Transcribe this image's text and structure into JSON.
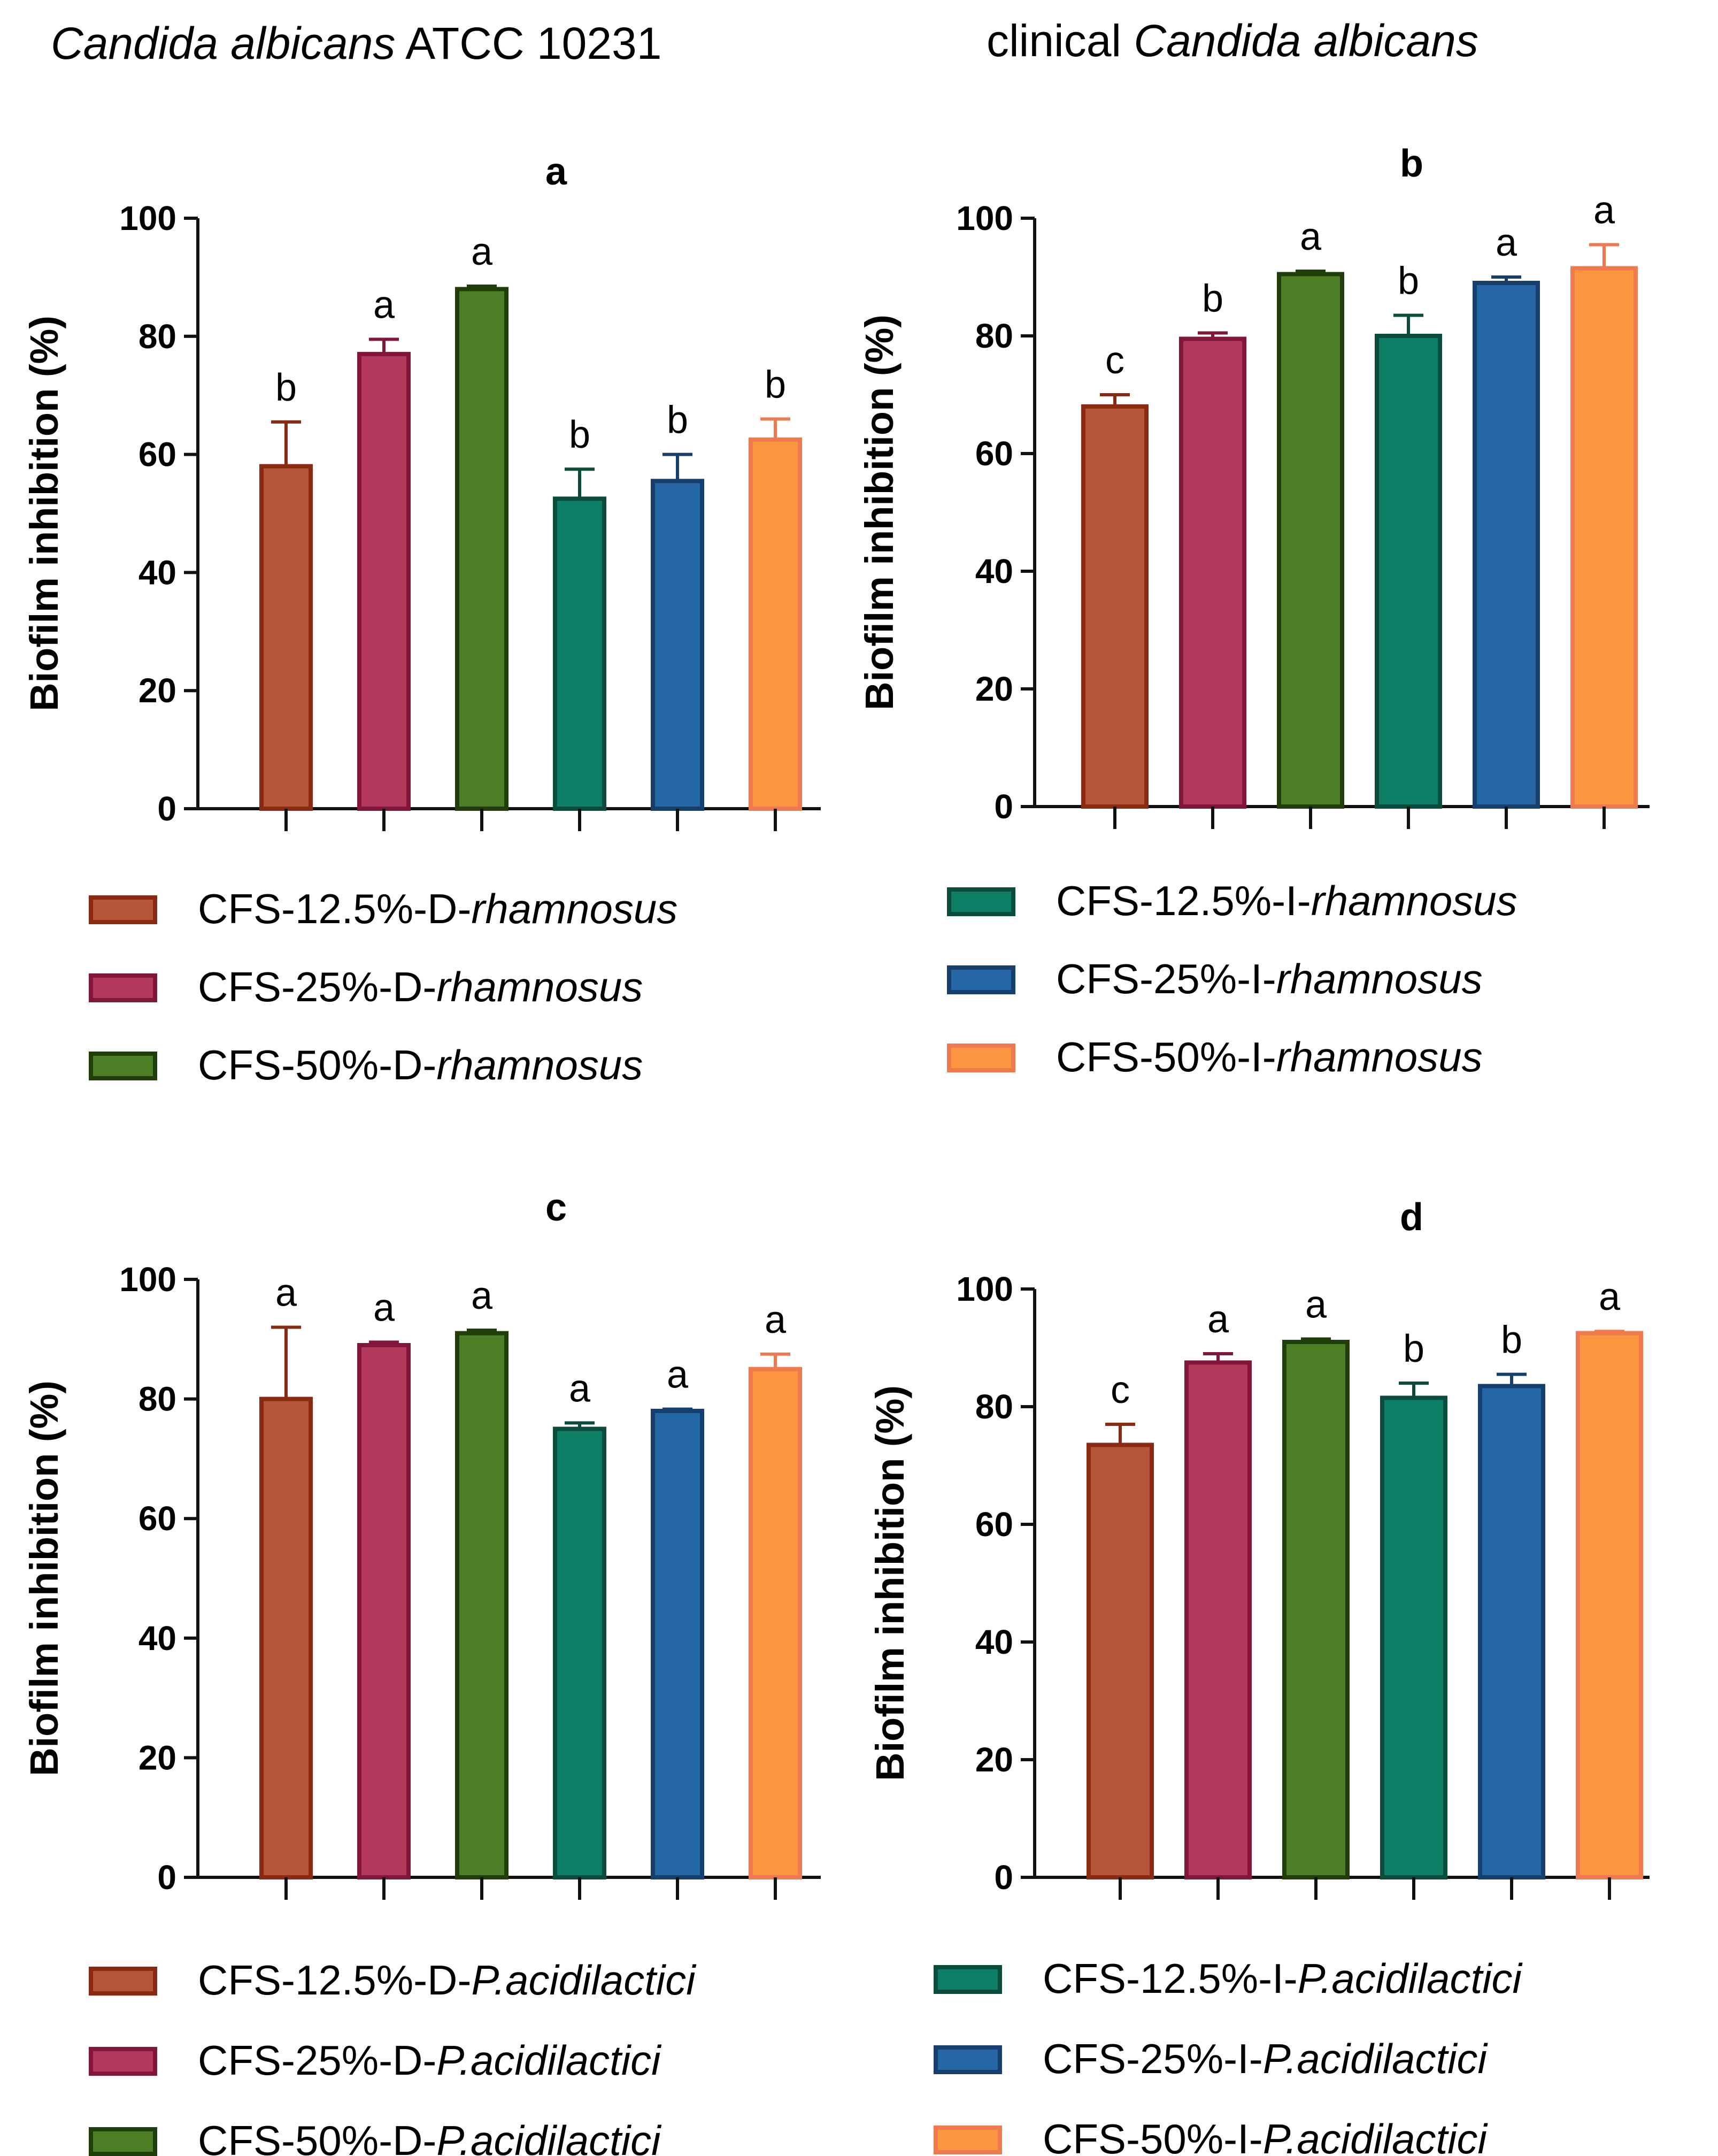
{
  "headings": {
    "left": {
      "italic": "Candida albicans",
      "plain": " ATCC 10231"
    },
    "right": {
      "plain": "clinical ",
      "italic": "Candida albicans"
    }
  },
  "colors": {
    "c1": {
      "fill": "#b5563a",
      "stroke": "#8b2a12"
    },
    "c2": {
      "fill": "#b2395c",
      "stroke": "#82163a"
    },
    "c3": {
      "fill": "#4e7e26",
      "stroke": "#1f3e0a"
    },
    "c4": {
      "fill": "#0f7e66",
      "stroke": "#0a4d3c"
    },
    "c5": {
      "fill": "#2467a4",
      "stroke": "#173f6e"
    },
    "c6": {
      "fill": "#fb963f",
      "stroke": "#f07a4f"
    }
  },
  "chart_data": [
    {
      "id": "a",
      "type": "bar",
      "title": "a",
      "ylabel": "Biofilm inhibition (%)",
      "ylim": [
        0,
        100
      ],
      "yticks": [
        0,
        20,
        40,
        60,
        80,
        100
      ],
      "categories": [
        "CFS-12.5%-D-rhamnosus",
        "CFS-25%-D-rhamnosus",
        "CFS-50%-D-rhamnosus",
        "CFS-12.5%-I-rhamnosus",
        "CFS-25%-I-rhamnosus",
        "CFS-50%-I-rhamnosus"
      ],
      "values": [
        58,
        77,
        88,
        52.5,
        55.5,
        62.5
      ],
      "errors": [
        7.5,
        2.5,
        0.5,
        5,
        4.5,
        3.5
      ],
      "letters": [
        "b",
        "a",
        "a",
        "b",
        "b",
        "b"
      ]
    },
    {
      "id": "b",
      "type": "bar",
      "title": "b",
      "ylabel": "Biofilm inhibition (%)",
      "ylim": [
        0,
        100
      ],
      "yticks": [
        0,
        20,
        40,
        60,
        80,
        100
      ],
      "categories": [
        "CFS-12.5%-D-rhamnosus",
        "CFS-25%-D-rhamnosus",
        "CFS-50%-D-rhamnosus",
        "CFS-12.5%-I-rhamnosus",
        "CFS-25%-I-rhamnosus",
        "CFS-50%-I-rhamnosus"
      ],
      "values": [
        68,
        79.5,
        90.5,
        80,
        89,
        91.5
      ],
      "errors": [
        2,
        1,
        0.5,
        3.5,
        1,
        4
      ],
      "letters": [
        "c",
        "b",
        "a",
        "b",
        "a",
        "a"
      ]
    },
    {
      "id": "c",
      "type": "bar",
      "title": "c",
      "ylabel": "Biofilm inhibition (%)",
      "ylim": [
        0,
        100
      ],
      "yticks": [
        0,
        20,
        40,
        60,
        80,
        100
      ],
      "categories": [
        "CFS-12.5%-D-P.acidilactici",
        "CFS-25%-D-P.acidilactici",
        "CFS-50%-D-P.acidilactici",
        "CFS-12.5%-I-P.acidilactici",
        "CFS-25%-I-P.acidilactici",
        "CFS-50%-I-P.acidilactici"
      ],
      "values": [
        80,
        89,
        91,
        75,
        78,
        85
      ],
      "errors": [
        12,
        0.5,
        0.5,
        1,
        0.3,
        2.5
      ],
      "letters": [
        "a",
        "a",
        "a",
        "a",
        "a",
        "a"
      ]
    },
    {
      "id": "d",
      "type": "bar",
      "title": "d",
      "ylabel": "Biofilm inhibition (%)",
      "ylim": [
        0,
        100
      ],
      "yticks": [
        0,
        20,
        40,
        60,
        80,
        100
      ],
      "categories": [
        "CFS-12.5%-D-P.acidilactici",
        "CFS-25%-D-P.acidilactici",
        "CFS-50%-D-P.acidilactici",
        "CFS-12.5%-I-P.acidilactici",
        "CFS-25%-I-P.acidilactici",
        "CFS-50%-I-P.acidilactici"
      ],
      "values": [
        73.5,
        87.5,
        91,
        81.5,
        83.5,
        92.5
      ],
      "errors": [
        3.5,
        1.5,
        0.5,
        2.5,
        2,
        0.3
      ],
      "letters": [
        "c",
        "a",
        "a",
        "b",
        "b",
        "a"
      ]
    }
  ],
  "legends": [
    {
      "id": "ld-rham",
      "items": [
        {
          "label": "CFS-12.5%-D-",
          "species": "rhamnosus",
          "color": "c1"
        },
        {
          "label": "CFS-25%-D-",
          "species": "rhamnosus",
          "color": "c2"
        },
        {
          "label": "CFS-50%-D-",
          "species": "rhamnosus",
          "color": "c3"
        }
      ]
    },
    {
      "id": "li-rham",
      "items": [
        {
          "label": "CFS-12.5%-I-",
          "species": "rhamnosus",
          "color": "c4"
        },
        {
          "label": "CFS-25%-I-",
          "species": "rhamnosus",
          "color": "c5"
        },
        {
          "label": "CFS-50%-I-",
          "species": "rhamnosus",
          "color": "c6"
        }
      ]
    },
    {
      "id": "ld-pac",
      "items": [
        {
          "label": "CFS-12.5%-D-",
          "species": "P.acidilactici",
          "color": "c1"
        },
        {
          "label": "CFS-25%-D-",
          "species": "P.acidilactici",
          "color": "c2"
        },
        {
          "label": "CFS-50%-D-",
          "species": "P.acidilactici",
          "color": "c3"
        }
      ]
    },
    {
      "id": "li-pac",
      "items": [
        {
          "label": "CFS-12.5%-I-",
          "species": "P.acidilactici",
          "color": "c4"
        },
        {
          "label": "CFS-25%-I-",
          "species": "P.acidilactici",
          "color": "c5"
        },
        {
          "label": "CFS-50%-I-",
          "species": "P.acidilactici",
          "color": "c6"
        }
      ]
    }
  ]
}
